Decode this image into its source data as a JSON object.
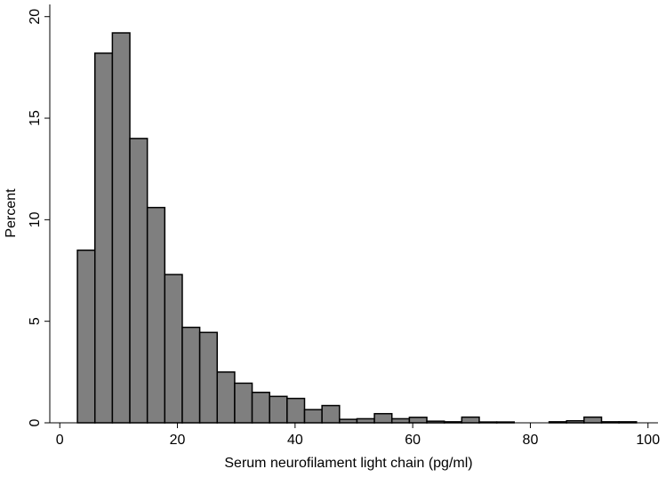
{
  "chart_data": {
    "type": "histogram",
    "x_label": "Serum neurofilament light chain (pg/ml)",
    "y_label": "Percent",
    "bins": [
      3,
      5.97,
      8.94,
      11.91,
      14.88,
      17.85,
      20.82,
      23.79,
      26.76,
      29.73,
      32.7,
      35.67,
      38.64,
      41.61,
      44.58,
      47.55,
      50.52,
      53.49,
      56.46,
      59.43,
      62.4,
      65.37,
      68.34,
      71.31,
      74.28,
      77.25,
      80.22,
      83.19,
      86.16,
      89.13,
      92.1,
      95.07,
      98.04
    ],
    "values": [
      8.5,
      18.2,
      19.2,
      14.0,
      10.6,
      7.3,
      4.7,
      4.45,
      2.5,
      1.95,
      1.5,
      1.3,
      1.2,
      0.65,
      0.85,
      0.17,
      0.2,
      0.45,
      0.2,
      0.27,
      0.08,
      0.05,
      0.28,
      0.04,
      0.04,
      0,
      0,
      0.05,
      0.1,
      0.28,
      0.05,
      0.05
    ],
    "color": "#7f7f7f",
    "edge_color": "#000000",
    "xlim": [
      -1.7,
      101.7
    ],
    "ylim": [
      0,
      20.6
    ],
    "xticks": [
      0,
      20,
      40,
      60,
      80,
      100
    ],
    "yticks": [
      0,
      5,
      10,
      15,
      20
    ],
    "grid": false
  }
}
